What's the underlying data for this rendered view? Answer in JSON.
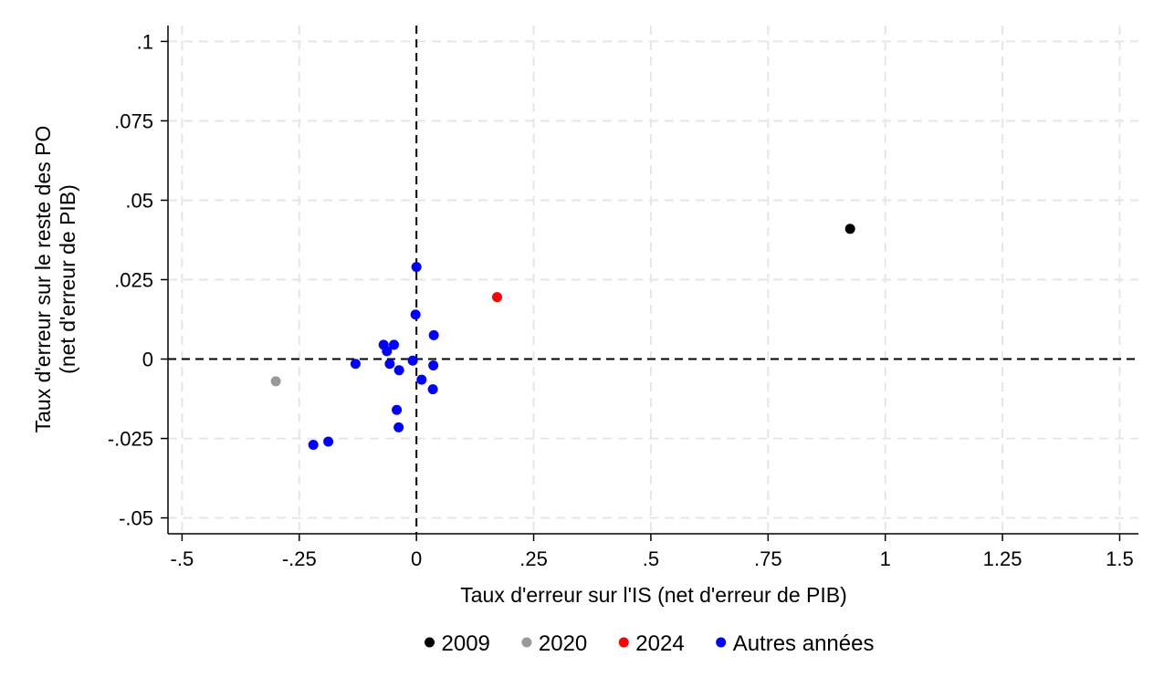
{
  "chart_data": {
    "type": "scatter",
    "xlabel": "Taux d'erreur sur l'IS (net d'erreur de PIB)",
    "ylabel": [
      "Taux d'erreur sur le reste des PO",
      "(net d'erreur de PIB)"
    ],
    "xlim": [
      -0.53,
      1.54
    ],
    "ylim": [
      -0.055,
      0.105
    ],
    "x_ticks": [
      -0.5,
      -0.25,
      0,
      0.25,
      0.5,
      0.75,
      1,
      1.25,
      1.5
    ],
    "x_tick_labels": [
      "-.5",
      "-.25",
      "0",
      ".25",
      ".5",
      ".75",
      "1",
      "1.25",
      "1.5"
    ],
    "y_ticks": [
      -0.05,
      -0.025,
      0,
      0.025,
      0.05,
      0.075,
      0.1
    ],
    "y_tick_labels": [
      "-.05",
      "-.025",
      "0",
      ".025",
      ".05",
      ".075",
      ".1"
    ],
    "grid": true,
    "reference_lines": {
      "x": 0,
      "y": 0,
      "style": "dashed"
    },
    "legend_position": "bottom",
    "series": [
      {
        "name": "2009",
        "color": "#000000",
        "points": [
          [
            0.925,
            0.041
          ]
        ]
      },
      {
        "name": "2020",
        "color": "#999999",
        "points": [
          [
            -0.3,
            -0.007
          ]
        ]
      },
      {
        "name": "2024",
        "color": "#ff0000",
        "points": [
          [
            0.172,
            0.0195
          ]
        ]
      },
      {
        "name": "Autres années",
        "color": "#0000ff",
        "points": [
          [
            0.0,
            0.029
          ],
          [
            -0.002,
            0.014
          ],
          [
            0.037,
            0.0075
          ],
          [
            -0.07,
            0.0045
          ],
          [
            -0.048,
            0.0045
          ],
          [
            -0.063,
            0.0025
          ],
          [
            -0.13,
            -0.0015
          ],
          [
            -0.057,
            -0.0015
          ],
          [
            -0.008,
            -0.0005
          ],
          [
            0.036,
            -0.002
          ],
          [
            -0.037,
            -0.0035
          ],
          [
            0.011,
            -0.0065
          ],
          [
            0.035,
            -0.0095
          ],
          [
            -0.042,
            -0.016
          ],
          [
            -0.038,
            -0.0215
          ],
          [
            -0.188,
            -0.026
          ],
          [
            -0.22,
            -0.027
          ]
        ]
      }
    ]
  }
}
